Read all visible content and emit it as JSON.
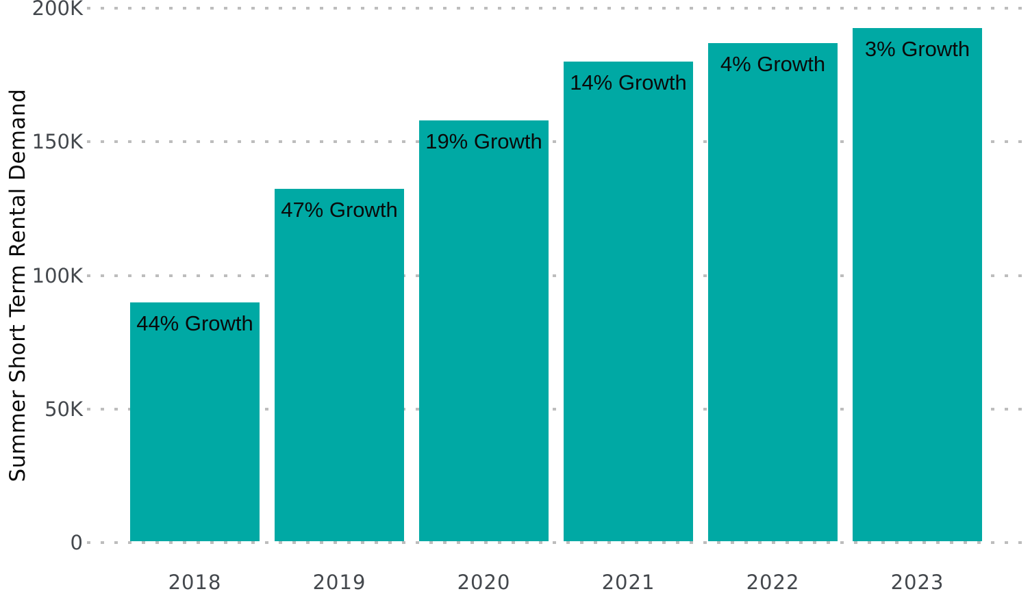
{
  "colors": {
    "background": "#ffffff",
    "bar": "#00A9A4",
    "gridline": "#bdbdbd",
    "tick_text": "#44484d",
    "annotation_text": "#0a0a0a"
  },
  "chart_data": {
    "type": "bar",
    "title": "",
    "xlabel": "",
    "ylabel": "Summer Short Term Rental Demand",
    "categories": [
      "2018",
      "2019",
      "2020",
      "2021",
      "2022",
      "2023"
    ],
    "values": [
      90000,
      132500,
      158000,
      180000,
      187000,
      192500
    ],
    "bar_labels": [
      "44% Growth",
      "47% Growth",
      "19% Growth",
      "14% Growth",
      "4% Growth",
      "3% Growth"
    ],
    "ylim": [
      0,
      200000
    ],
    "yticks": [
      {
        "value": 0,
        "label": "0"
      },
      {
        "value": 50000,
        "label": "50K"
      },
      {
        "value": 100000,
        "label": "100K"
      },
      {
        "value": 150000,
        "label": "150K"
      },
      {
        "value": 200000,
        "label": "200K"
      }
    ],
    "grid": "horizontal-dotted",
    "legend_position": "none",
    "bar_color": "#00A9A4"
  }
}
